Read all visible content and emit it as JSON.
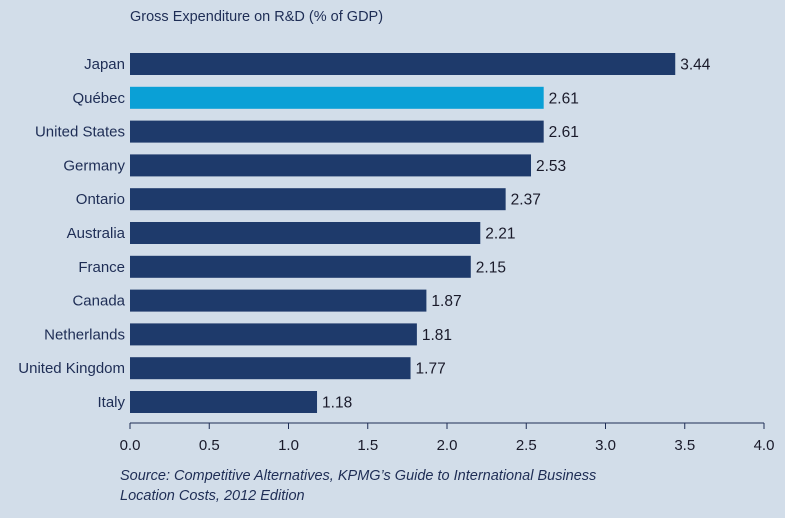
{
  "chart_data": {
    "type": "bar",
    "orientation": "horizontal",
    "title": "Gross Expenditure on  R&D (% of GDP)",
    "categories": [
      "Japan",
      "Québec",
      "United States",
      "Germany",
      "Ontario",
      "Australia",
      "France",
      "Canada",
      "Netherlands",
      "United Kingdom",
      "Italy"
    ],
    "values": [
      3.44,
      2.61,
      2.61,
      2.53,
      2.37,
      2.21,
      2.15,
      1.87,
      1.81,
      1.77,
      1.18
    ],
    "value_labels": [
      "3.44",
      "2.61",
      "2.61",
      "2.53",
      "2.37",
      "2.21",
      "2.15",
      "1.87",
      "1.81",
      "1.77",
      "1.18"
    ],
    "highlight_category": "Québec",
    "xlim": [
      0,
      4.0
    ],
    "x_ticks": [
      "0.0",
      "0.5",
      "1.0",
      "1.5",
      "2.0",
      "2.5",
      "3.0",
      "3.5",
      "4.0"
    ],
    "grid": false,
    "colors": {
      "bar": "#1e3a6b",
      "highlight": "#0aa0d6",
      "text": "#1e2d55",
      "background": "#d2dde9"
    }
  },
  "source": {
    "line1": "Source: Competitive Alternatives, KPMG’s Guide to International Business",
    "line2": "Location Costs, 2012 Edition"
  }
}
